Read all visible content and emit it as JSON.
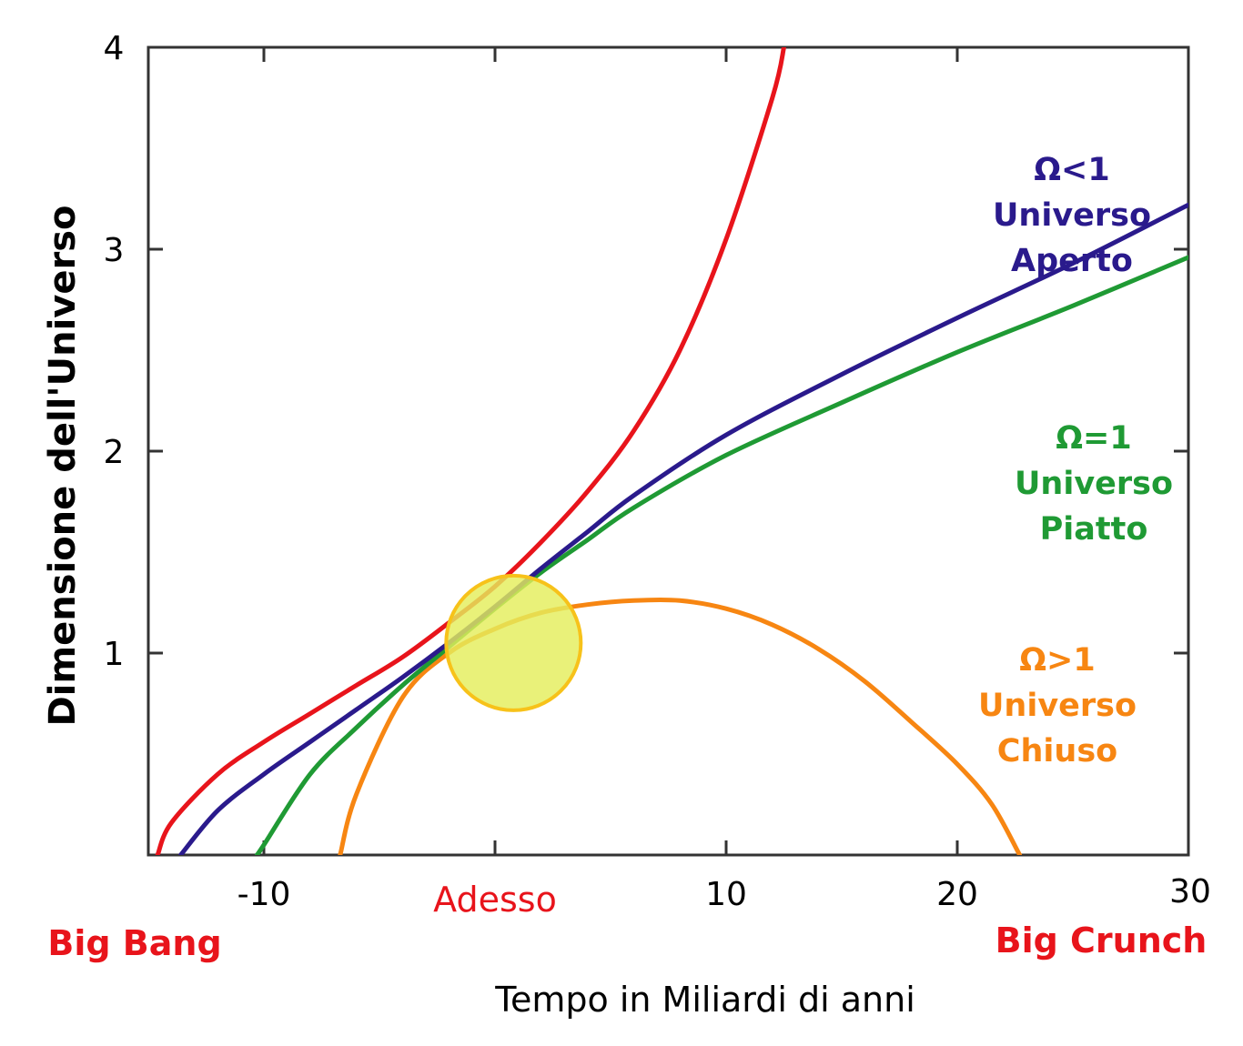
{
  "chart_data": {
    "type": "line",
    "xlabel": "Tempo in Miliardi di anni",
    "ylabel": "Dimensione dell'Universo",
    "xlim": [
      -15,
      30
    ],
    "ylim": [
      0,
      4
    ],
    "x_ticks": [
      -10,
      0,
      10,
      20,
      30
    ],
    "x_tick_labels": [
      "-10",
      "Adesso",
      "10",
      "20",
      "30"
    ],
    "y_ticks": [
      1,
      2,
      3,
      4
    ],
    "y_tick_labels": [
      "1",
      "2",
      "3",
      "4"
    ],
    "annotations": {
      "big_bang": "Big Bang",
      "big_crunch": "Big Crunch"
    },
    "now_marker": {
      "x": 0.8,
      "y": 1.05
    },
    "series": [
      {
        "color": "#e8141b",
        "points": [
          [
            -14.6,
            0
          ],
          [
            -14,
            0.16
          ],
          [
            -12,
            0.4
          ],
          [
            -10,
            0.56
          ],
          [
            -8,
            0.7
          ],
          [
            -6,
            0.84
          ],
          [
            -4,
            0.98
          ],
          [
            -2,
            1.15
          ],
          [
            0,
            1.33
          ],
          [
            2,
            1.55
          ],
          [
            4,
            1.8
          ],
          [
            6,
            2.1
          ],
          [
            8,
            2.5
          ],
          [
            10,
            3.05
          ],
          [
            12,
            3.75
          ],
          [
            12.5,
            4.0
          ]
        ],
        "labels": []
      },
      {
        "color": "#2a1a8c",
        "points": [
          [
            -13.6,
            0
          ],
          [
            -12,
            0.22
          ],
          [
            -10,
            0.4
          ],
          [
            -8,
            0.56
          ],
          [
            -6,
            0.72
          ],
          [
            -4,
            0.88
          ],
          [
            -2,
            1.05
          ],
          [
            0,
            1.23
          ],
          [
            2,
            1.42
          ],
          [
            4,
            1.6
          ],
          [
            6,
            1.78
          ],
          [
            10,
            2.08
          ],
          [
            15,
            2.38
          ],
          [
            20,
            2.66
          ],
          [
            25,
            2.93
          ],
          [
            30,
            3.22
          ]
        ],
        "labels": [
          "Ω<1",
          "Universo",
          "Aperto"
        ]
      },
      {
        "color": "#1f9a34",
        "points": [
          [
            -10.3,
            0
          ],
          [
            -10,
            0.05
          ],
          [
            -8,
            0.4
          ],
          [
            -6,
            0.63
          ],
          [
            -4,
            0.84
          ],
          [
            -2,
            1.03
          ],
          [
            0,
            1.22
          ],
          [
            2,
            1.4
          ],
          [
            4,
            1.56
          ],
          [
            6,
            1.72
          ],
          [
            10,
            1.98
          ],
          [
            15,
            2.24
          ],
          [
            20,
            2.49
          ],
          [
            25,
            2.72
          ],
          [
            30,
            2.96
          ]
        ],
        "labels": [
          "Ω=1",
          "Universo",
          "Piatto"
        ]
      },
      {
        "color": "#f78612",
        "points": [
          [
            -6.7,
            0
          ],
          [
            -6,
            0.3
          ],
          [
            -4,
            0.78
          ],
          [
            -2,
            1.0
          ],
          [
            0,
            1.12
          ],
          [
            2,
            1.2
          ],
          [
            4,
            1.24
          ],
          [
            6,
            1.26
          ],
          [
            8,
            1.26
          ],
          [
            10,
            1.22
          ],
          [
            12,
            1.14
          ],
          [
            14,
            1.02
          ],
          [
            16,
            0.86
          ],
          [
            18,
            0.66
          ],
          [
            20,
            0.45
          ],
          [
            21.5,
            0.25
          ],
          [
            22.7,
            0
          ]
        ],
        "labels": [
          "Ω>1",
          "Universo",
          "Chiuso"
        ]
      }
    ]
  }
}
